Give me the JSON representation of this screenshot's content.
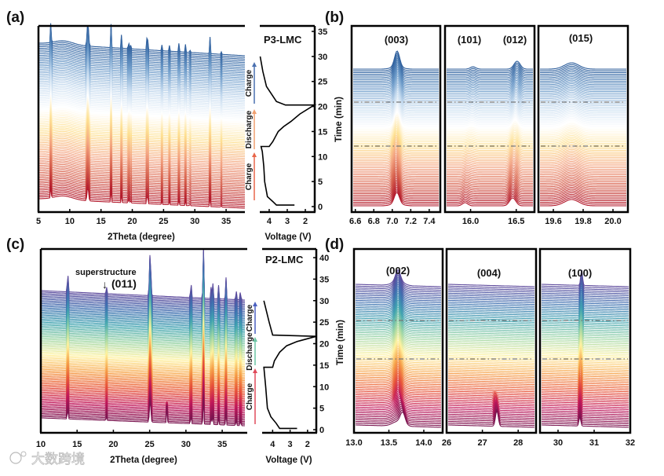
{
  "watermark": {
    "text": "大数跨境"
  },
  "chart_data": [
    {
      "panel": "(a)",
      "type": "line",
      "subtype": "waterfall",
      "sample": "P3-LMC",
      "xlabel": "2Theta (degree)",
      "xlim": [
        5,
        38
      ],
      "xticks": [
        "5",
        "10",
        "15",
        "20",
        "25",
        "30",
        "35"
      ],
      "xtick_values": [
        5,
        10,
        15,
        20,
        25,
        30,
        35
      ],
      "colormap": [
        "#b2182b",
        "#d6604d",
        "#f4a582",
        "#fee090",
        "#ffffff",
        "#c6dbef",
        "#6a99c8",
        "#2c5d9b"
      ],
      "n_traces": 90,
      "peaks_2theta": [
        7.0,
        12.9,
        16.6,
        18.3,
        19.4,
        19.7,
        22.4,
        24.7,
        25.9,
        27.5,
        28.5,
        29.2,
        32.4,
        34.2
      ],
      "voltage_panel": {
        "xlabel": "Voltage (V)",
        "xlim": [
          4.52,
          1.48
        ],
        "xticks": [
          "4",
          "3",
          "2"
        ],
        "xtick_values": [
          4,
          3,
          2
        ],
        "ylabel": "Time (min)",
        "ylim": [
          0,
          35
        ],
        "yticks": [
          "0",
          "5",
          "10",
          "15",
          "20",
          "25",
          "30",
          "35"
        ],
        "ytick_values": [
          0,
          5,
          10,
          15,
          20,
          25,
          30,
          35
        ],
        "profile": {
          "voltage": [
            2.6,
            3.6,
            3.8,
            4.1,
            4.25,
            4.3,
            4.38,
            4.45,
            4.45,
            4.0,
            3.8,
            3.5,
            3.2,
            2.8,
            2.3,
            1.5,
            1.5,
            3.1,
            3.6,
            4.15,
            4.35,
            4.5
          ],
          "time": [
            0.3,
            0.3,
            1,
            2,
            5,
            8,
            11,
            12,
            12,
            12,
            13,
            15,
            16,
            17,
            18.5,
            20.3,
            20.3,
            20.3,
            21,
            24,
            27,
            30
          ]
        },
        "segments": [
          {
            "label": "Charge",
            "color": "#e8664a"
          },
          {
            "label": "Discharge",
            "color": "#f0a070"
          },
          {
            "label": "Charge",
            "color": "#4a70b0"
          }
        ]
      }
    },
    {
      "panel": "(b)",
      "type": "line",
      "subtype": "waterfall-zoom",
      "ylabel": "Time (min)",
      "colormap": [
        "#b2182b",
        "#d6604d",
        "#f4a582",
        "#fee090",
        "#ffffff",
        "#c6dbef",
        "#6a99c8",
        "#2c5d9b"
      ],
      "phase_boundaries_min": [
        12,
        20.5
      ],
      "subplots": [
        {
          "hkl": [
            "(003)"
          ],
          "xlim": [
            6.56,
            7.52
          ],
          "xticks": [
            "6.6",
            "6.8",
            "7.0",
            "7.2",
            "7.4"
          ],
          "xtick_values": [
            6.6,
            6.8,
            7.0,
            7.2,
            7.4
          ],
          "peaks": [
            7.05
          ]
        },
        {
          "hkl": [
            "(101)",
            "(012)"
          ],
          "xlim": [
            15.72,
            16.7
          ],
          "xticks": [
            "16.0",
            "16.5"
          ],
          "xtick_values": [
            16.0,
            16.5
          ],
          "peaks": [
            15.95,
            16.5
          ]
        },
        {
          "hkl": [
            "(015)"
          ],
          "xlim": [
            19.5,
            20.1
          ],
          "xticks": [
            "19.6",
            "19.8",
            "20.0"
          ],
          "xtick_values": [
            19.6,
            19.8,
            20.0
          ],
          "peaks": [
            19.72
          ]
        }
      ]
    },
    {
      "panel": "(c)",
      "type": "line",
      "subtype": "waterfall",
      "sample": "P2-LMC",
      "xlabel": "2Theta (degree)",
      "xlim": [
        10,
        38
      ],
      "xticks": [
        "10",
        "15",
        "20",
        "25",
        "30",
        "35"
      ],
      "xtick_values": [
        10,
        15,
        20,
        25,
        30,
        35
      ],
      "colormap": [
        "#7a1550",
        "#c2185b",
        "#e8553a",
        "#f6a24a",
        "#fff3a0",
        "#9bd5a4",
        "#3fa3b0",
        "#3f6fb0",
        "#5e4a9c"
      ],
      "n_traces": 90,
      "annotation": {
        "text": "superstructure",
        "hkl": "(011)",
        "arrow": "↓"
      },
      "peaks_2theta": [
        13.7,
        19.0,
        25.0,
        27.3,
        30.6,
        32.3,
        33.4,
        33.6,
        34.4,
        35.4,
        36.8,
        37.4
      ],
      "voltage_panel": {
        "xlabel": "Voltage (V)",
        "xlim": [
          4.6,
          1.5
        ],
        "xticks": [
          "4",
          "3",
          "2"
        ],
        "xtick_values": [
          4,
          3,
          2
        ],
        "ylabel": "Time (min)",
        "ylim": [
          0,
          40
        ],
        "yticks": [
          "0",
          "5",
          "10",
          "15",
          "20",
          "25",
          "30",
          "35",
          "40"
        ],
        "ytick_values": [
          0,
          5,
          10,
          15,
          20,
          25,
          30,
          35,
          40
        ],
        "profile": {
          "voltage": [
            2.6,
            3.6,
            3.8,
            4.1,
            4.3,
            4.4,
            4.5,
            4.5,
            4.0,
            3.9,
            3.6,
            3.2,
            2.6,
            1.5,
            1.5,
            4.0,
            4.2,
            4.5
          ],
          "time": [
            0.3,
            0.3,
            1.5,
            3,
            5,
            10,
            14.5,
            14.5,
            14.5,
            16,
            18,
            19.5,
            20.5,
            21.7,
            21.7,
            22,
            25,
            30
          ]
        },
        "segments": [
          {
            "label": "Charge",
            "color": "#e04a5a"
          },
          {
            "label": "Discharge",
            "color": "#6cc4a4"
          },
          {
            "label": "Charge",
            "color": "#4a60c0"
          }
        ]
      }
    },
    {
      "panel": "(d)",
      "type": "line",
      "subtype": "waterfall-zoom",
      "ylabel": "Time (min)",
      "colormap": [
        "#7a1550",
        "#c2185b",
        "#e8553a",
        "#f6a24a",
        "#fff3a0",
        "#9bd5a4",
        "#3fa3b0",
        "#3f6fb0",
        "#5e4a9c"
      ],
      "phase_boundaries_min": [
        14.5,
        22
      ],
      "subplots": [
        {
          "hkl": [
            "(002)"
          ],
          "xlim": [
            13.0,
            14.27
          ],
          "xticks": [
            "13.0",
            "13.5",
            "14.0"
          ],
          "xtick_values": [
            13.0,
            13.5,
            14.0
          ],
          "peaks": [
            13.63
          ]
        },
        {
          "hkl": [
            "(004)"
          ],
          "xlim": [
            26,
            28.5
          ],
          "xticks": [
            "26",
            "27",
            "28"
          ],
          "xtick_values": [
            26,
            27,
            28
          ],
          "peaks": [
            27.35
          ]
        },
        {
          "hkl": [
            "(100)"
          ],
          "xlim": [
            29.5,
            32
          ],
          "xticks": [
            "30",
            "31",
            "32"
          ],
          "xtick_values": [
            30,
            31,
            32
          ],
          "peaks": [
            30.6
          ]
        }
      ]
    }
  ]
}
